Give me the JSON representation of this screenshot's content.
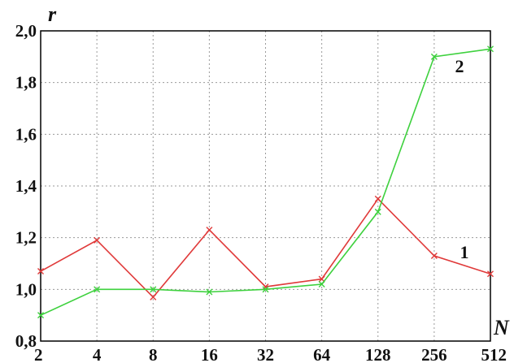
{
  "chart_data": {
    "type": "line",
    "title": "",
    "xlabel": "N",
    "ylabel": "r",
    "categories": [
      "2",
      "4",
      "8",
      "16",
      "32",
      "64",
      "128",
      "256",
      "512"
    ],
    "ylim": [
      0.8,
      2.0
    ],
    "yticks": [
      "0,8",
      "1,0",
      "1,2",
      "1,4",
      "1,6",
      "1,8",
      "2,0"
    ],
    "grid": true,
    "series": [
      {
        "name": "1",
        "color": "#e03a3a",
        "marker": "x",
        "values": [
          1.07,
          1.19,
          0.97,
          1.23,
          1.01,
          1.04,
          1.35,
          1.13,
          1.06
        ]
      },
      {
        "name": "2",
        "color": "#3ed13e",
        "marker": "x",
        "values": [
          0.9,
          1.0,
          1.0,
          0.99,
          1.0,
          1.02,
          1.3,
          1.9,
          1.93
        ]
      }
    ]
  }
}
